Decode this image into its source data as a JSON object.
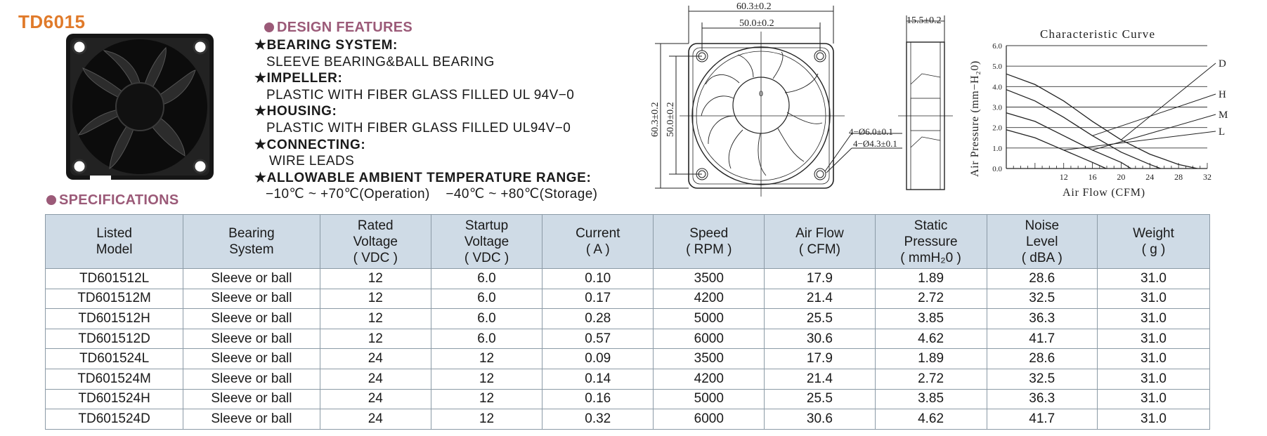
{
  "model": "TD6015",
  "design_features": {
    "title": "DESIGN FEATURES",
    "items": [
      {
        "heading": "BEARING SYSTEM:",
        "value": "SLEEVE BEARING&BALL BEARING"
      },
      {
        "heading": "IMPELLER:",
        "value": "PLASTIC WITH FIBER GLASS FILLED UL 94V−0"
      },
      {
        "heading": "HOUSING:",
        "value": "PLASTIC WITH FIBER GLASS FILLED UL94V−0"
      },
      {
        "heading": "CONNECTING:",
        "value": "WIRE LEADS"
      },
      {
        "heading": "ALLOWABLE AMBIENT TEMPERATURE RANGE:",
        "value": "−10℃ ~ +70℃(Operation)    −40℃ ~ +80℃(Storage)"
      }
    ]
  },
  "specifications_title": "SPECIFICATIONS",
  "drawing": {
    "outer_width": "60.3±0.2",
    "hole_spacing": "50.0±0.2",
    "outer_height": "60.3±0.2",
    "hole_spacing_v": "50.0±0.2",
    "thickness": "15.5±0.2",
    "hole_a": "4−Ø6.0±0.1",
    "hole_b": "4−Ø4.3±0.1",
    "center_mark": "0"
  },
  "chart_data": {
    "type": "line",
    "title": "Characteristic Curve",
    "xlabel": "Air Flow (CFM)",
    "ylabel": "Air Pressure (mm−H₂0)",
    "xlim": [
      4,
      32
    ],
    "ylim": [
      0,
      6
    ],
    "x_ticks": [
      "12",
      "16",
      "20",
      "24",
      "28",
      "32"
    ],
    "y_ticks": [
      "0.0",
      "1.0",
      "2.0",
      "3.0",
      "4.0",
      "5.0",
      "6.0"
    ],
    "grid": true,
    "series": [
      {
        "name": "D",
        "x": [
          4,
          8,
          12,
          16,
          20,
          24,
          28,
          30.6
        ],
        "y": [
          4.62,
          4.1,
          3.3,
          2.3,
          1.4,
          0.7,
          0.2,
          0
        ]
      },
      {
        "name": "H",
        "x": [
          4,
          8,
          12,
          16,
          20,
          24,
          25.5
        ],
        "y": [
          3.85,
          3.3,
          2.5,
          1.6,
          0.8,
          0.2,
          0
        ]
      },
      {
        "name": "M",
        "x": [
          4,
          8,
          12,
          16,
          20,
          21.4
        ],
        "y": [
          2.72,
          2.3,
          1.6,
          0.9,
          0.3,
          0
        ]
      },
      {
        "name": "L",
        "x": [
          4,
          8,
          12,
          16,
          17.9
        ],
        "y": [
          1.89,
          1.5,
          0.9,
          0.3,
          0
        ]
      }
    ],
    "legend_placement": "right"
  },
  "table": {
    "headers": [
      [
        "Listed",
        "Model"
      ],
      [
        "Bearing",
        "System"
      ],
      [
        "Rated",
        "Voltage",
        "( VDC )"
      ],
      [
        "Startup",
        "Voltage",
        "( VDC )"
      ],
      [
        "Current",
        "( A )"
      ],
      [
        "Speed",
        "( RPM )"
      ],
      [
        "Air Flow",
        "( CFM)"
      ],
      [
        "Static",
        "Pressure",
        "( mmH₂0 )"
      ],
      [
        "Noise",
        "Level",
        "( dBA )"
      ],
      [
        "Weight",
        "( g )"
      ]
    ],
    "rows": [
      [
        "TD601512L",
        "Sleeve or ball",
        "12",
        "6.0",
        "0.10",
        "3500",
        "17.9",
        "1.89",
        "28.6",
        "31.0"
      ],
      [
        "TD601512M",
        "Sleeve or ball",
        "12",
        "6.0",
        "0.17",
        "4200",
        "21.4",
        "2.72",
        "32.5",
        "31.0"
      ],
      [
        "TD601512H",
        "Sleeve or ball",
        "12",
        "6.0",
        "0.28",
        "5000",
        "25.5",
        "3.85",
        "36.3",
        "31.0"
      ],
      [
        "TD601512D",
        "Sleeve or ball",
        "12",
        "6.0",
        "0.57",
        "6000",
        "30.6",
        "4.62",
        "41.7",
        "31.0"
      ],
      [
        "TD601524L",
        "Sleeve or ball",
        "24",
        "12",
        "0.09",
        "3500",
        "17.9",
        "1.89",
        "28.6",
        "31.0"
      ],
      [
        "TD601524M",
        "Sleeve or ball",
        "24",
        "12",
        "0.14",
        "4200",
        "21.4",
        "2.72",
        "32.5",
        "31.0"
      ],
      [
        "TD601524H",
        "Sleeve or ball",
        "24",
        "12",
        "0.16",
        "5000",
        "25.5",
        "3.85",
        "36.3",
        "31.0"
      ],
      [
        "TD601524D",
        "Sleeve or ball",
        "24",
        "12",
        "0.32",
        "6000",
        "30.6",
        "4.62",
        "41.7",
        "31.0"
      ]
    ]
  }
}
